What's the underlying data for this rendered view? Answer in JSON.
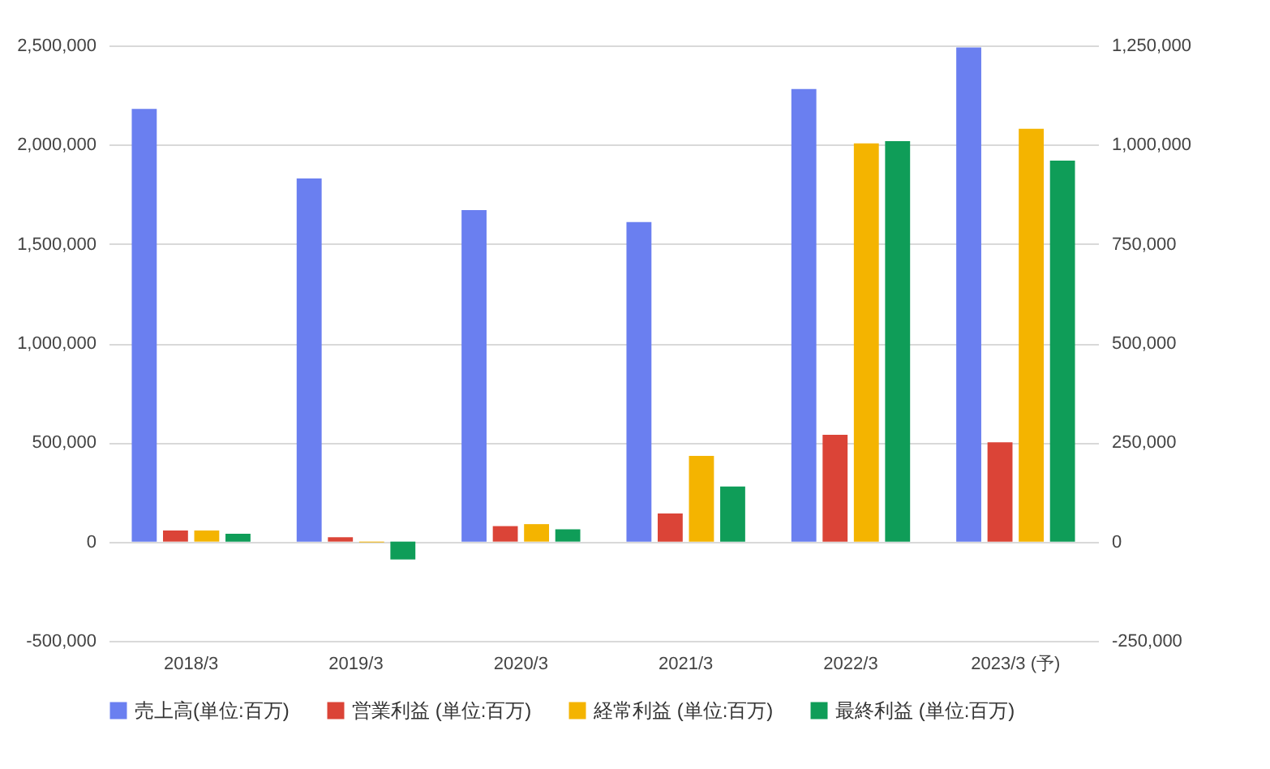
{
  "chart_data": {
    "type": "bar",
    "categories": [
      "2018/3",
      "2019/3",
      "2020/3",
      "2021/3",
      "2022/3",
      "2023/3 (予)"
    ],
    "series": [
      {
        "name": "売上高(単位:百万)",
        "color": "#6a7ff0",
        "values": [
          2180000,
          1830000,
          1670000,
          1610000,
          2280000,
          2490000
        ]
      },
      {
        "name": "営業利益 (単位:百万)",
        "color": "#db4437",
        "axis": "y2",
        "values": [
          28000,
          11000,
          39000,
          71000,
          269000,
          250000
        ]
      },
      {
        "name": "経常利益 (単位:百万)",
        "color": "#f4b400",
        "axis": "y2",
        "values": [
          28000,
          -2000,
          44000,
          216000,
          1003000,
          1040000
        ]
      },
      {
        "name": "最終利益 (単位:百万)",
        "color": "#0f9d58",
        "axis": "y2",
        "values": [
          20000,
          -45000,
          31000,
          139000,
          1009000,
          960000
        ]
      }
    ],
    "ylim": [
      -500000,
      2500000
    ],
    "yticks": [
      {
        "value": -500000,
        "label": "-500,000"
      },
      0,
      {
        "value": 500000,
        "label": "500,000"
      },
      {
        "value": 1000000,
        "label": "1,000,000"
      },
      {
        "value": 1500000,
        "label": "1,500,000"
      },
      {
        "value": 2000000,
        "label": "2,000,000"
      },
      {
        "value": 2500000,
        "label": "2,500,000"
      }
    ],
    "y2lim": [
      -250000,
      1250000
    ],
    "y2ticks": [
      {
        "value": -250000,
        "label": "-250,000"
      },
      0,
      {
        "value": 250000,
        "label": "250,000"
      },
      {
        "value": 500000,
        "label": "500,000"
      },
      {
        "value": 750000,
        "label": "750,000"
      },
      {
        "value": 1000000,
        "label": "1,000,000"
      },
      {
        "value": 1250000,
        "label": "1,250,000"
      }
    ],
    "grid": true,
    "legend": "bottom"
  }
}
